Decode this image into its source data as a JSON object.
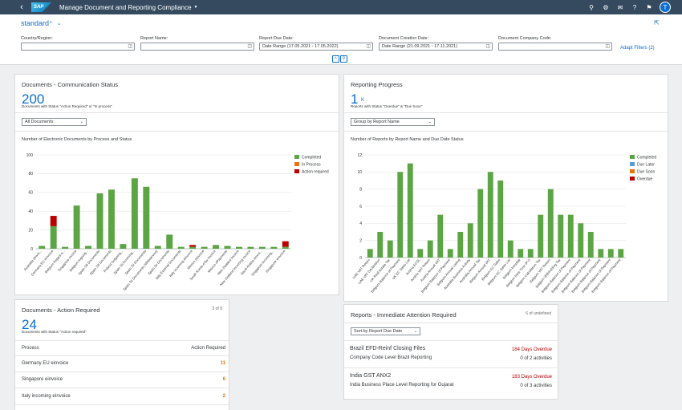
{
  "shell": {
    "logo_text": "SAP",
    "title": "Manage Document and Reporting Compliance",
    "avatar_initial": "T"
  },
  "filterbar": {
    "variant": "standard",
    "variant_marker": "*",
    "fields": [
      {
        "label": "Country/Region:",
        "value": ""
      },
      {
        "label": "Report Name:",
        "value": ""
      },
      {
        "label": "Report Due Date:",
        "value": "Date Range (17.05.2021 - 17.05.2022)"
      },
      {
        "label": "Document Creation Date:",
        "value": "Date Range (21.09.2021 - 17.11.2021)"
      },
      {
        "label": "Document Company Code:",
        "value": ""
      }
    ],
    "adapt_filters": "Adapt Filters (2)"
  },
  "card_comm": {
    "title": "Documents - Communication Status",
    "kpi": "200",
    "sub": "Documents with Status \"Action Required\" or \"In process\"",
    "select": "All Documents",
    "chart_title": "Number of Electronic Documents by Process and Status"
  },
  "card_progress": {
    "title": "Reporting Progress",
    "kpi": "1",
    "unit": "K",
    "sub": "Reports with Status \"Overdue\" & \"Due Soon\"",
    "select": "Group by Report Name",
    "chart_title": "Number of Reports by Report Name and Due Date Status"
  },
  "card_action": {
    "title": "Documents - Action Required",
    "counter": "3 of 8",
    "kpi": "24",
    "sub": "Documents with Status \"Action required\"",
    "col_process": "Process",
    "col_action": "Action Required",
    "rows": [
      {
        "process": "Germany EU einvoice",
        "count": "11"
      },
      {
        "process": "Singapore einvoice",
        "count": "6"
      },
      {
        "process": "Italy incoming eInvoice",
        "count": "2"
      }
    ]
  },
  "card_attention": {
    "title": "Reports - Immediate Attention Required",
    "counter": "6 of undefined",
    "sort": "Sort by Report Due Date",
    "items": [
      {
        "title": "Brazil EFD-Reinf Closing Files",
        "sub": "Company Code Level Brazil Reporting",
        "overdue": "184 Days Overdue",
        "activities": "0 of 2 activities"
      },
      {
        "title": "India GST ANX2",
        "sub": "India Business Place Level Reporting for Gujarat",
        "overdue": "183 Days Overdue",
        "activities": "0 of 3 activities"
      }
    ]
  },
  "chart_data": [
    {
      "type": "bar",
      "stacked": true,
      "title": "Number of Electronic Documents by Process and Status",
      "ylim": [
        0,
        100
      ],
      "yticks": [
        0,
        20,
        40,
        60,
        80,
        100
      ],
      "categories": [
        "Australia eInvoi...",
        "Germany EU einvoice",
        "Belgium Peppol e...",
        "Singapore invoice",
        "Belgium Ingoing...",
        "Spain SII Documents",
        "Spain SII Documents",
        "Poland Outgoing...",
        "Spain Sii Incoming...",
        "Spain Sii Documents",
        "Spain Sii Documents (Webservice)",
        "Spain Sii Documents",
        "Italy External Documents",
        "Italy incoming eInvoice",
        "Mexico eInvoice",
        "South Korea eTax Invoice",
        "Mexico ePayments",
        "New Zealand Invoice",
        "New Zealand Incoming invoice",
        "Saudi Arabia einvoi...",
        "Singapore Incoming...",
        "Singapore einvoice"
      ],
      "series": [
        {
          "name": "Completed",
          "values": [
            3,
            24,
            2,
            46,
            3,
            59,
            63,
            5,
            75,
            66,
            3,
            15,
            2,
            2,
            2,
            4,
            3,
            2,
            2,
            2,
            2,
            2
          ]
        },
        {
          "name": "In Process",
          "values": [
            0,
            0,
            0,
            0,
            0,
            0,
            0,
            0,
            0,
            0,
            0,
            0,
            0,
            0,
            0,
            0,
            0,
            0,
            0,
            0,
            0,
            0
          ]
        },
        {
          "name": "Action required",
          "values": [
            0,
            11,
            0,
            0,
            0,
            0,
            0,
            0,
            0,
            0,
            0,
            0,
            0,
            2,
            0,
            0,
            0,
            0,
            0,
            0,
            0,
            6
          ]
        }
      ],
      "colors": {
        "Completed": "#5ba544",
        "In Process": "#e9730c",
        "Action required": "#bb0000"
      },
      "legend": "right"
    },
    {
      "type": "bar",
      "stacked": true,
      "title": "Number of Reports by Report Name and Due Date Status",
      "ylim": [
        0,
        12
      ],
      "yticks": [
        0,
        2,
        4,
        6,
        8,
        10,
        12
      ],
      "categories": [
        "UAE VAT Return",
        "UAE VAT Declaration",
        "UK Real Estate Tax",
        "Belgium Balance of Payment",
        "UK EC Sales List",
        "Austria ECSL",
        "Austria VAT Return",
        "Austria Annual VAT",
        "Belgium Balance of Payment",
        "Belgium Annual Listing",
        "Australia Business Activity",
        "Australia Annual Tax",
        "Belgium Annual VAT",
        "Belgium EC Sales",
        "Belgium EC Sales List",
        "Belgium Intrastat",
        "Belgium Intra Time (PY)",
        "Belgium Calculation Tax",
        "Belgium VAT Return",
        "Belgium Withholding Tax",
        "Belgium Balance of Payment",
        "Belgium Balance of Payment",
        "Belgium Balance of Payment",
        "Belgium Balance of Payment",
        "Belgium Balance of Payment",
        "Belgium Balance of Payment"
      ],
      "series": [
        {
          "name": "Completed",
          "values": [
            1,
            3,
            2,
            10,
            11,
            1,
            2,
            5,
            1,
            3,
            4,
            8,
            10,
            9,
            2,
            1,
            1,
            5,
            8,
            5,
            5,
            4,
            3,
            1,
            1,
            1
          ]
        },
        {
          "name": "Due Later",
          "values": [
            0,
            0,
            0,
            0,
            0,
            0,
            0,
            0,
            0,
            0,
            0,
            0,
            0,
            0,
            0,
            0,
            0,
            0,
            0,
            0,
            0,
            0,
            0,
            0,
            0,
            0
          ]
        },
        {
          "name": "Due Soon",
          "values": [
            0,
            0,
            0,
            0,
            0,
            0,
            0,
            0,
            0,
            0,
            0,
            0,
            0,
            0,
            0,
            0,
            0,
            0,
            0,
            0,
            0,
            0,
            0,
            0,
            0,
            0
          ]
        },
        {
          "name": "Overdue",
          "values": [
            0,
            0,
            0,
            0,
            0,
            0,
            0,
            0,
            0,
            0,
            0,
            0,
            0,
            0,
            0,
            0,
            0,
            0,
            0,
            0,
            0,
            0,
            0,
            0,
            0,
            0
          ]
        }
      ],
      "colors": {
        "Completed": "#5ba544",
        "Due Later": "#5899da",
        "Due Soon": "#e9730c",
        "Overdue": "#bb0000"
      },
      "legend": "right"
    }
  ]
}
